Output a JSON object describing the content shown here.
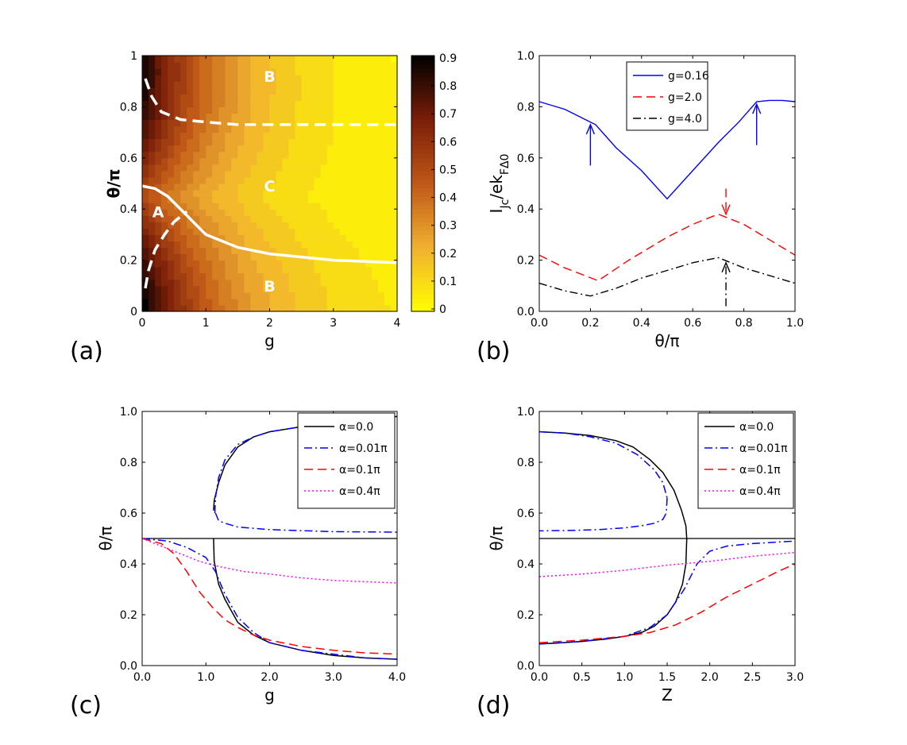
{
  "panels": {
    "a": {
      "label": "(a)"
    },
    "b": {
      "label": "(b)"
    },
    "c": {
      "label": "(c)"
    },
    "d": {
      "label": "(d)"
    }
  },
  "chart_data": [
    {
      "id": "a",
      "type": "heatmap",
      "xlabel": "g",
      "ylabel": "θ/π",
      "xlim": [
        0,
        4
      ],
      "ylim": [
        0,
        1
      ],
      "xticks": [
        "0",
        "1",
        "2",
        "3",
        "4"
      ],
      "yticks": [
        "0",
        "0.2",
        "0.4",
        "0.6",
        "0.8",
        "1"
      ],
      "colorbar": {
        "range": [
          0,
          0.9
        ],
        "ticks": [
          "0",
          "0.1",
          "0.2",
          "0.3",
          "0.4",
          "0.5",
          "0.6",
          "0.7",
          "0.8",
          "0.9"
        ],
        "colormap": [
          "#ffff00",
          "#f0b030",
          "#c05818",
          "#7a1e08",
          "#000000"
        ]
      },
      "boundaries": [
        {
          "style": "dashed",
          "color": "#ffffff",
          "x": [
            0.05,
            0.15,
            0.3,
            0.6,
            1.0,
            1.5,
            2.0,
            3.0,
            4.0
          ],
          "y": [
            0.91,
            0.84,
            0.78,
            0.75,
            0.74,
            0.73,
            0.73,
            0.73,
            0.73
          ]
        },
        {
          "style": "solid",
          "color": "#ffffff",
          "x": [
            0.0,
            0.2,
            0.4,
            0.6,
            0.8,
            1.0,
            1.5,
            2.0,
            3.0,
            4.0
          ],
          "y": [
            0.49,
            0.48,
            0.45,
            0.4,
            0.35,
            0.3,
            0.25,
            0.225,
            0.2,
            0.19
          ]
        },
        {
          "style": "dashed",
          "color": "#ffffff",
          "x": [
            0.05,
            0.1,
            0.2,
            0.35,
            0.5,
            0.7
          ],
          "y": [
            0.09,
            0.16,
            0.24,
            0.3,
            0.35,
            0.39
          ]
        }
      ],
      "annotations": [
        {
          "text": "B",
          "x": 2.0,
          "y": 0.92
        },
        {
          "text": "C",
          "x": 2.0,
          "y": 0.49
        },
        {
          "text": "A",
          "x": 0.25,
          "y": 0.39
        },
        {
          "text": "B",
          "x": 2.0,
          "y": 0.1
        }
      ]
    },
    {
      "id": "b",
      "type": "line",
      "xlabel": "θ/π",
      "ylabel": "I_Jc/ek_FΔ_0",
      "xlim": [
        0,
        1
      ],
      "ylim": [
        0,
        1
      ],
      "xticks": [
        "0.0",
        "0.2",
        "0.4",
        "0.6",
        "0.8",
        "1.0"
      ],
      "yticks": [
        "0.0",
        "0.2",
        "0.4",
        "0.6",
        "0.8",
        "1.0"
      ],
      "legend": "top-center",
      "series": [
        {
          "name": "g=0.16",
          "color": "#0000ff",
          "dash": "solid",
          "x": [
            0.0,
            0.1,
            0.2,
            0.22,
            0.3,
            0.4,
            0.5,
            0.6,
            0.7,
            0.78,
            0.85,
            0.9,
            0.95,
            1.0
          ],
          "y": [
            0.82,
            0.79,
            0.74,
            0.73,
            0.64,
            0.55,
            0.44,
            0.55,
            0.66,
            0.74,
            0.82,
            0.825,
            0.825,
            0.82
          ]
        },
        {
          "name": "g=2.0",
          "color": "#ff0000",
          "dash": "dashed",
          "x": [
            0.0,
            0.1,
            0.23,
            0.35,
            0.5,
            0.6,
            0.7,
            0.8,
            0.9,
            1.0
          ],
          "y": [
            0.22,
            0.17,
            0.12,
            0.2,
            0.29,
            0.34,
            0.38,
            0.34,
            0.28,
            0.22
          ]
        },
        {
          "name": "g=4.0",
          "color": "#000000",
          "dash": "dashdot",
          "x": [
            0.0,
            0.1,
            0.2,
            0.3,
            0.4,
            0.5,
            0.6,
            0.7,
            0.8,
            0.9,
            1.0
          ],
          "y": [
            0.11,
            0.08,
            0.06,
            0.09,
            0.13,
            0.16,
            0.19,
            0.21,
            0.17,
            0.14,
            0.11
          ]
        }
      ],
      "arrows": [
        {
          "color": "#0000ff",
          "dash": "solid",
          "x": 0.2,
          "from": 0.57,
          "to": 0.73
        },
        {
          "color": "#0000ff",
          "dash": "solid",
          "x": 0.85,
          "from": 0.65,
          "to": 0.81
        },
        {
          "color": "#ff0000",
          "dash": "dashed",
          "x": 0.73,
          "from": 0.48,
          "to": 0.38
        },
        {
          "color": "#000000",
          "dash": "dashdot",
          "x": 0.73,
          "from": 0.02,
          "to": 0.19
        }
      ]
    },
    {
      "id": "c",
      "type": "line",
      "xlabel": "g",
      "ylabel": "θ/π",
      "xlim": [
        0,
        4
      ],
      "ylim": [
        0,
        1
      ],
      "xticks": [
        "0.0",
        "1.0",
        "2.0",
        "3.0",
        "4.0"
      ],
      "yticks": [
        "0.0",
        "0.2",
        "0.4",
        "0.6",
        "0.8",
        "1.0"
      ],
      "legend": "top-right",
      "reference_line": {
        "y": 0.5,
        "color": "#000000"
      },
      "series": [
        {
          "name": "α=0.0",
          "color": "#000000",
          "dash": "solid",
          "segments": [
            {
              "x": [
                1.12,
                1.13,
                1.2,
                1.3,
                1.5,
                1.75,
                2.0,
                2.5,
                3.0,
                3.5,
                4.0
              ],
              "y": [
                0.61,
                0.65,
                0.72,
                0.79,
                0.86,
                0.9,
                0.92,
                0.94,
                0.96,
                0.97,
                0.98
              ]
            },
            {
              "x": [
                1.12,
                1.13,
                1.2,
                1.3,
                1.5,
                1.75,
                2.0,
                2.5,
                3.0,
                3.5,
                4.0
              ],
              "y": [
                0.5,
                0.41,
                0.32,
                0.26,
                0.17,
                0.12,
                0.09,
                0.06,
                0.04,
                0.03,
                0.025
              ]
            }
          ]
        },
        {
          "name": "α=0.01π",
          "color": "#0000ff",
          "dash": "dashdot",
          "segments": [
            {
              "x": [
                1.14,
                1.15,
                1.2,
                1.3,
                1.5,
                1.75,
                2.0,
                2.5,
                3.0,
                3.5,
                4.0
              ],
              "y": [
                0.6,
                0.66,
                0.74,
                0.81,
                0.87,
                0.9,
                0.92,
                0.94,
                0.96,
                0.97,
                0.98
              ]
            },
            {
              "x": [
                1.15,
                1.2,
                1.3,
                1.5,
                2.0,
                3.0,
                4.0
              ],
              "y": [
                0.6,
                0.57,
                0.56,
                0.545,
                0.535,
                0.527,
                0.525
              ]
            },
            {
              "x": [
                0.0,
                0.4,
                0.7,
                1.0,
                1.15,
                1.3,
                1.5,
                1.75,
                2.0,
                2.5,
                3.0,
                3.5,
                4.0
              ],
              "y": [
                0.5,
                0.49,
                0.465,
                0.425,
                0.37,
                0.28,
                0.19,
                0.13,
                0.09,
                0.06,
                0.045,
                0.03,
                0.025
              ]
            }
          ]
        },
        {
          "name": "α=0.1π",
          "color": "#ff0000",
          "dash": "dashed",
          "segments": [
            {
              "x": [
                0.0,
                0.3,
                0.5,
                0.7,
                0.9,
                1.1,
                1.3,
                1.5,
                1.75,
                2.0,
                2.5,
                3.0,
                3.5,
                4.0
              ],
              "y": [
                0.5,
                0.48,
                0.44,
                0.37,
                0.29,
                0.23,
                0.18,
                0.15,
                0.12,
                0.1,
                0.075,
                0.06,
                0.05,
                0.045
              ]
            }
          ]
        },
        {
          "name": "α=0.4π",
          "color": "#ff00ff",
          "dash": "dotted",
          "segments": [
            {
              "x": [
                0.0,
                0.3,
                0.6,
                0.9,
                1.2,
                1.6,
                2.0,
                2.5,
                3.0,
                3.5,
                4.0
              ],
              "y": [
                0.5,
                0.47,
                0.44,
                0.41,
                0.39,
                0.37,
                0.36,
                0.345,
                0.335,
                0.33,
                0.325
              ]
            }
          ]
        }
      ]
    },
    {
      "id": "d",
      "type": "line",
      "xlabel": "Z",
      "ylabel": "θ/π",
      "xlim": [
        0,
        3
      ],
      "ylim": [
        0,
        1
      ],
      "xticks": [
        "0.0",
        "0.5",
        "1.0",
        "1.5",
        "2.0",
        "2.5",
        "3.0"
      ],
      "yticks": [
        "0.0",
        "0.2",
        "0.4",
        "0.6",
        "0.8",
        "1.0"
      ],
      "legend": "top-right",
      "reference_line": {
        "y": 0.5,
        "color": "#000000"
      },
      "series": [
        {
          "name": "α=0.0",
          "color": "#000000",
          "dash": "solid",
          "segments": [
            {
              "x": [
                0.0,
                0.3,
                0.6,
                0.9,
                1.1,
                1.3,
                1.45,
                1.58,
                1.67,
                1.72,
                1.73
              ],
              "y": [
                0.92,
                0.915,
                0.905,
                0.885,
                0.86,
                0.81,
                0.76,
                0.69,
                0.61,
                0.55,
                0.5
              ]
            },
            {
              "x": [
                1.73,
                1.72,
                1.68,
                1.6,
                1.5,
                1.35,
                1.2,
                1.0,
                0.8,
                0.5,
                0.2,
                0.0
              ],
              "y": [
                0.5,
                0.4,
                0.32,
                0.25,
                0.2,
                0.155,
                0.13,
                0.115,
                0.105,
                0.095,
                0.088,
                0.085
              ]
            }
          ]
        },
        {
          "name": "α=0.01π",
          "color": "#0000ff",
          "dash": "dashdot",
          "segments": [
            {
              "x": [
                0.0,
                0.3,
                0.6,
                0.9,
                1.15,
                1.35,
                1.45,
                1.5
              ],
              "y": [
                0.92,
                0.915,
                0.9,
                0.875,
                0.83,
                0.77,
                0.72,
                0.66
              ]
            },
            {
              "x": [
                1.5,
                1.49,
                1.45,
                1.35,
                1.2,
                1.0,
                0.7,
                0.4,
                0.0
              ],
              "y": [
                0.66,
                0.6,
                0.575,
                0.56,
                0.55,
                0.542,
                0.535,
                0.532,
                0.53
              ]
            },
            {
              "x": [
                0.0,
                0.5,
                1.0,
                1.3,
                1.5,
                1.7,
                1.85,
                2.0,
                2.2,
                2.5,
                3.0
              ],
              "y": [
                0.085,
                0.095,
                0.115,
                0.15,
                0.2,
                0.3,
                0.4,
                0.45,
                0.47,
                0.48,
                0.49
              ]
            }
          ]
        },
        {
          "name": "α=0.1π",
          "color": "#ff0000",
          "dash": "dashed",
          "segments": [
            {
              "x": [
                0.0,
                0.5,
                1.0,
                1.3,
                1.6,
                1.9,
                2.2,
                2.5,
                2.8,
                3.0
              ],
              "y": [
                0.09,
                0.1,
                0.115,
                0.13,
                0.16,
                0.21,
                0.27,
                0.32,
                0.37,
                0.4
              ]
            }
          ]
        },
        {
          "name": "α=0.4π",
          "color": "#ff00ff",
          "dash": "dotted",
          "segments": [
            {
              "x": [
                0.0,
                0.5,
                1.0,
                1.5,
                2.0,
                2.5,
                3.0
              ],
              "y": [
                0.35,
                0.36,
                0.375,
                0.395,
                0.41,
                0.43,
                0.445
              ]
            }
          ]
        }
      ]
    }
  ]
}
